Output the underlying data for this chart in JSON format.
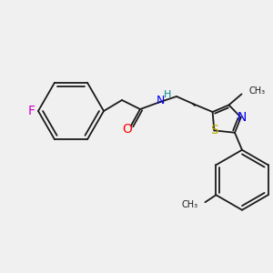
{
  "background_color": "#f0f0f0",
  "bond_color": "#1a1a1a",
  "figsize": [
    3.0,
    3.0
  ],
  "dpi": 100,
  "colors": {
    "F": "#cc00cc",
    "O": "#ff0000",
    "N": "#0000ff",
    "H": "#008b8b",
    "S": "#bbaa00",
    "C": "#1a1a1a"
  },
  "lw": 1.3
}
